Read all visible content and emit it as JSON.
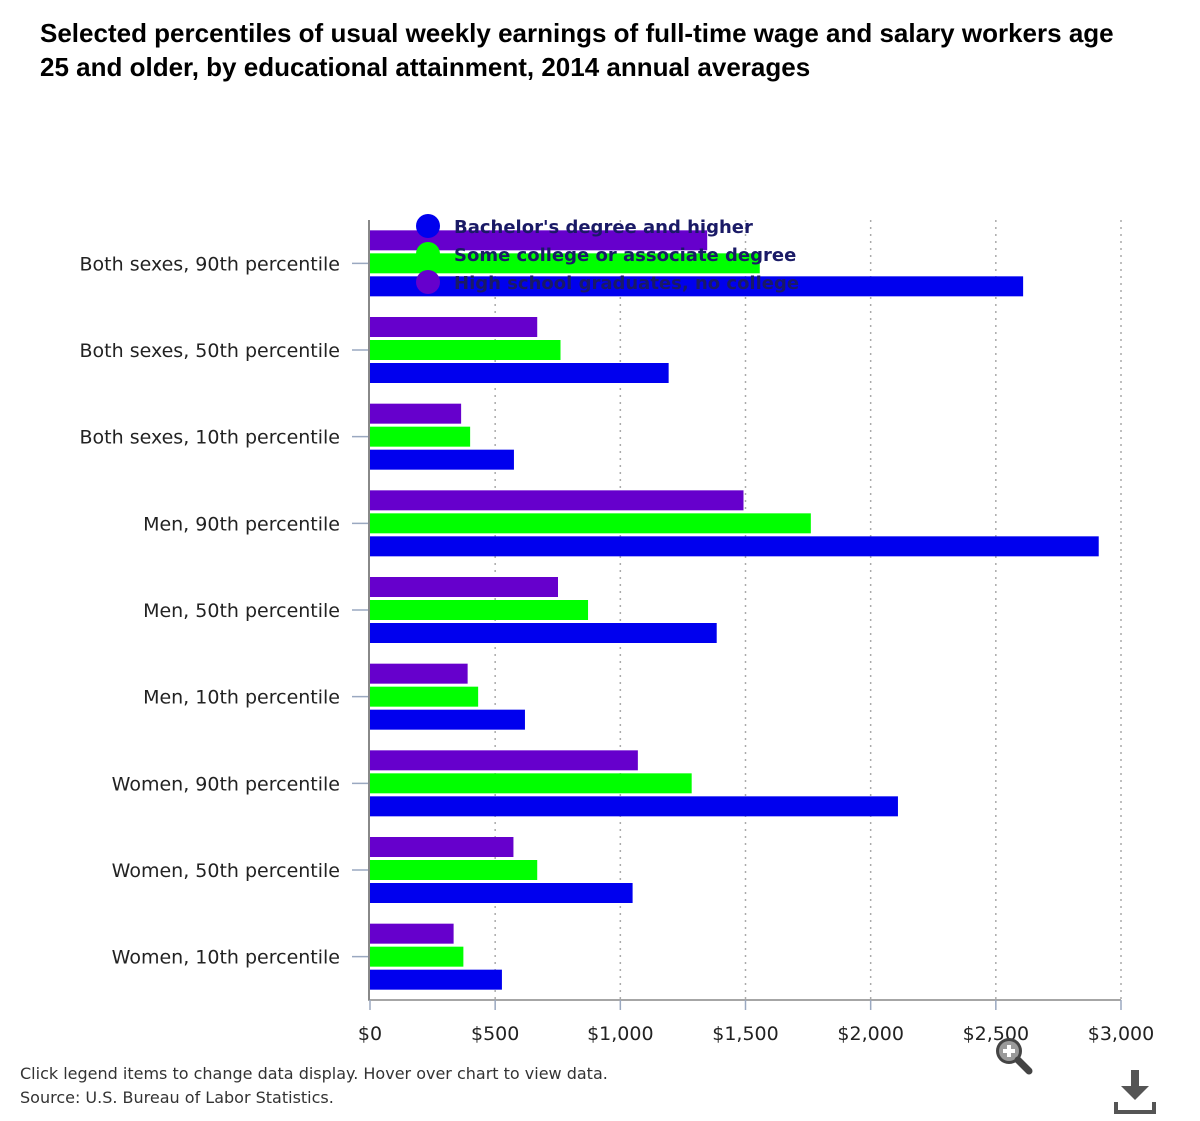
{
  "chart_data": {
    "type": "bar",
    "orientation": "horizontal",
    "title": "Selected percentiles of usual weekly earnings of full-time wage and salary workers age 25 and older, by educational attainment, 2014 annual averages",
    "categories": [
      "Both sexes, 90th percentile",
      "Both sexes, 50th percentile",
      "Both sexes, 10th percentile",
      "Men, 90th percentile",
      "Men, 50th percentile",
      "Men, 10th percentile",
      "Women, 90th percentile",
      "Women, 50th percentile",
      "Women, 10th percentile"
    ],
    "series": [
      {
        "name": "Bachelor's degree and higher",
        "color": "#0000ee",
        "values": [
          2609,
          1193,
          575,
          2911,
          1385,
          619,
          2109,
          1049,
          527
        ]
      },
      {
        "name": "Some college or associate degree",
        "color": "#00ff00",
        "values": [
          1557,
          761,
          400,
          1761,
          871,
          432,
          1285,
          668,
          373
        ]
      },
      {
        "name": "High school graduates, no college",
        "color": "#6600cc",
        "values": [
          1347,
          668,
          364,
          1492,
          751,
          390,
          1070,
          573,
          334
        ]
      }
    ],
    "xlim": [
      0,
      3000
    ],
    "xticks": [
      0,
      500,
      1000,
      1500,
      2000,
      2500,
      3000
    ],
    "xtick_labels": [
      "$0",
      "$500",
      "$1,000",
      "$1,500",
      "$2,000",
      "$2,500",
      "$3,000"
    ],
    "xlabel": "",
    "ylabel": "",
    "grid": "vertical dotted",
    "legend_position": "top-left inside plot"
  },
  "footer": {
    "instructions": "Click legend items to change data display. Hover over chart to view data.",
    "source": "Source: U.S. Bureau of Labor Statistics."
  },
  "icons": {
    "zoom": "magnifier-plus-icon",
    "download": "download-icon"
  }
}
